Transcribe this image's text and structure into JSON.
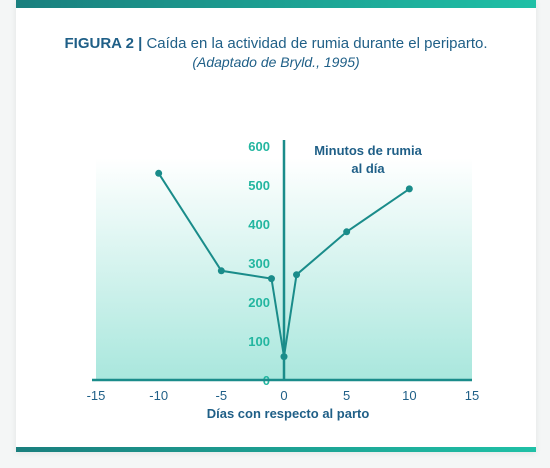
{
  "figure": {
    "label": "FIGURA 2 |",
    "title": "Caída en la actividad de rumia durante el periparto.",
    "source": "(Adaptado de Bryld., 1995)"
  },
  "colors": {
    "accent": "#23b6a0",
    "line": "#1a8c8a",
    "text": "#1f5f87"
  },
  "chart_data": {
    "type": "line",
    "title": "Caída en la actividad de rumia durante el periparto.",
    "xlabel": "Días con respecto al parto",
    "ylabel": "",
    "series_label": [
      "Minutos de rumia",
      "al día"
    ],
    "xlim": [
      -15,
      15
    ],
    "ylim": [
      0,
      600
    ],
    "x_ticks": [
      "-15",
      "-10",
      "-5",
      "0",
      "5",
      "10",
      "15"
    ],
    "y_ticks": [
      "0",
      "100",
      "200",
      "300",
      "400",
      "500",
      "600"
    ],
    "series": [
      {
        "x": [
          -10,
          -5,
          -1,
          0,
          1,
          5,
          10
        ],
        "y": [
          530,
          280,
          260,
          60,
          270,
          380,
          490
        ]
      }
    ]
  }
}
